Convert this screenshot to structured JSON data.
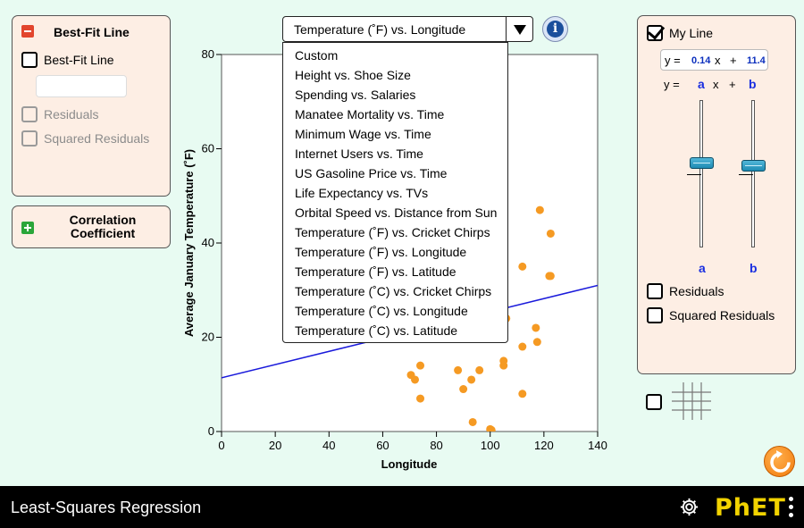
{
  "best_fit_panel": {
    "title": "Best-Fit Line",
    "checkbox_best_fit": "Best-Fit Line",
    "checkbox_residuals": "Residuals",
    "checkbox_squared_residuals": "Squared Residuals"
  },
  "correlation_panel": {
    "title_line1": "Correlation",
    "title_line2": "Coefficient"
  },
  "dataset_selector": {
    "selected": "Temperature (˚F) vs. Longitude",
    "options": [
      "Custom",
      "Height vs. Shoe Size",
      "Spending vs. Salaries",
      "Manatee Mortality vs. Time",
      "Minimum Wage vs. Time",
      "Internet Users vs. Time",
      "US Gasoline Price vs. Time",
      "Life Expectancy vs. TVs",
      "Orbital Speed vs. Distance from Sun",
      "Temperature (˚F) vs. Cricket Chirps",
      "Temperature (˚F) vs. Longitude",
      "Temperature (˚F) vs. Latitude",
      "Temperature (˚C) vs. Cricket Chirps",
      "Temperature (˚C) vs. Longitude",
      "Temperature (˚C) vs. Latitude"
    ]
  },
  "info_button": {
    "glyph": "i"
  },
  "my_line_panel": {
    "title": "My Line",
    "eq_y": "y =",
    "eq_a_value": "0.14",
    "eq_x": "x",
    "eq_plus": "+",
    "eq_b_value": "11.4",
    "form_y": "y =",
    "form_a": "a",
    "form_x": "x",
    "form_plus": "+",
    "form_b": "b",
    "slider_a_label": "a",
    "slider_b_label": "b",
    "slider_a_level": 0.57,
    "slider_b_level": 0.55,
    "checkbox_residuals": "Residuals",
    "checkbox_squared_residuals": "Squared Residuals"
  },
  "colors": {
    "background": "#e8fbf2",
    "panel": "#fdeee4",
    "point": "#f59a23",
    "line": "#1a1adb",
    "accent_blue": "#1a2fe0",
    "navbar": "#000000",
    "phet_yellow": "#f2d300"
  },
  "navbar": {
    "title": "Least-Squares Regression",
    "logo": "PhET"
  },
  "icons": {
    "settings": "gear-icon",
    "menu": "kebab-icon",
    "reset": "reset-icon",
    "grid": "grid-icon",
    "info": "info-icon"
  },
  "chart_data": {
    "type": "scatter",
    "xlabel": "Longitude",
    "ylabel": "Average January Temperature (˚F)",
    "xlim": [
      0,
      140
    ],
    "ylim": [
      0,
      80
    ],
    "xticks": [
      0,
      20,
      40,
      60,
      80,
      100,
      120,
      140
    ],
    "yticks": [
      0,
      20,
      40,
      60,
      80
    ],
    "grid": false,
    "points": [
      [
        70.5,
        12
      ],
      [
        72,
        11
      ],
      [
        74,
        14
      ],
      [
        74,
        7
      ],
      [
        88,
        13
      ],
      [
        90,
        9
      ],
      [
        93,
        11
      ],
      [
        93.5,
        2
      ],
      [
        96,
        13
      ],
      [
        100,
        0.5
      ],
      [
        100.5,
        0.3
      ],
      [
        105,
        14
      ],
      [
        105,
        15
      ],
      [
        106,
        24
      ],
      [
        112,
        18
      ],
      [
        112,
        8
      ],
      [
        112,
        35
      ],
      [
        117,
        22
      ],
      [
        117.5,
        19
      ],
      [
        118.5,
        47
      ],
      [
        122,
        33
      ],
      [
        122.5,
        33
      ],
      [
        122.5,
        42
      ]
    ],
    "line": {
      "slope": 0.14,
      "intercept": 11.4
    }
  }
}
